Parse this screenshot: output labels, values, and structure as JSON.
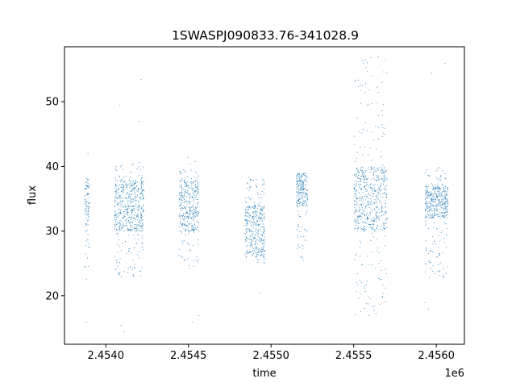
{
  "chart_data": {
    "type": "scatter",
    "title": "1SWASPJ090833.76-341028.9",
    "xlabel": "time",
    "ylabel": "flux",
    "x_offset_label": "1e6",
    "xlim": [
      2453750,
      2456170
    ],
    "ylim": [
      12.5,
      58.5
    ],
    "xticks": [
      2454000,
      2454500,
      2455000,
      2455500,
      2456000
    ],
    "xtick_labels": [
      "2.4540",
      "2.4545",
      "2.4550",
      "2.4555",
      "2.4560"
    ],
    "yticks": [
      20,
      30,
      40,
      50
    ],
    "ytick_labels": [
      "20",
      "30",
      "40",
      "50"
    ],
    "grid": false,
    "marker_color": "#1f77b4",
    "clusters": [
      {
        "x_range": [
          2453870,
          2453900
        ],
        "core_y": [
          31,
          38
        ],
        "spread_y": [
          22.5,
          38.5
        ],
        "extremes": [
          [
            2453880,
            16
          ],
          [
            2453890,
            42
          ]
        ]
      },
      {
        "x_range": [
          2454050,
          2454230
        ],
        "core_y": [
          30,
          38
        ],
        "spread_y": [
          23,
          41
        ],
        "extremes": [
          [
            2454090,
            15.5
          ],
          [
            2454080,
            49.5
          ],
          [
            2454110,
            14.5
          ],
          [
            2454210,
            53.5
          ],
          [
            2454200,
            47
          ]
        ]
      },
      {
        "x_range": [
          2454440,
          2454560
        ],
        "core_y": [
          30,
          38
        ],
        "spread_y": [
          24,
          41.5
        ],
        "extremes": [
          [
            2454520,
            16
          ],
          [
            2454560,
            17
          ]
        ]
      },
      {
        "x_range": [
          2454840,
          2454960
        ],
        "core_y": [
          26,
          34
        ],
        "spread_y": [
          25,
          38.5
        ],
        "extremes": [
          [
            2454930,
            20.5
          ]
        ]
      },
      {
        "x_range": [
          2455150,
          2455220
        ],
        "core_y": [
          34,
          39
        ],
        "spread_y": [
          25.5,
          39.5
        ],
        "extremes": []
      },
      {
        "x_range": [
          2455500,
          2455700
        ],
        "core_y": [
          30,
          40
        ],
        "spread_y": [
          17,
          57
        ],
        "extremes": [
          [
            2455590,
            17
          ],
          [
            2455570,
            56.5
          ],
          [
            2455670,
            53
          ]
        ]
      },
      {
        "x_range": [
          2455930,
          2456070
        ],
        "core_y": [
          32,
          37
        ],
        "spread_y": [
          22.5,
          40
        ],
        "extremes": [
          [
            2455950,
            18
          ],
          [
            2455930,
            19
          ],
          [
            2455970,
            54.5
          ],
          [
            2456050,
            56
          ]
        ]
      }
    ]
  }
}
